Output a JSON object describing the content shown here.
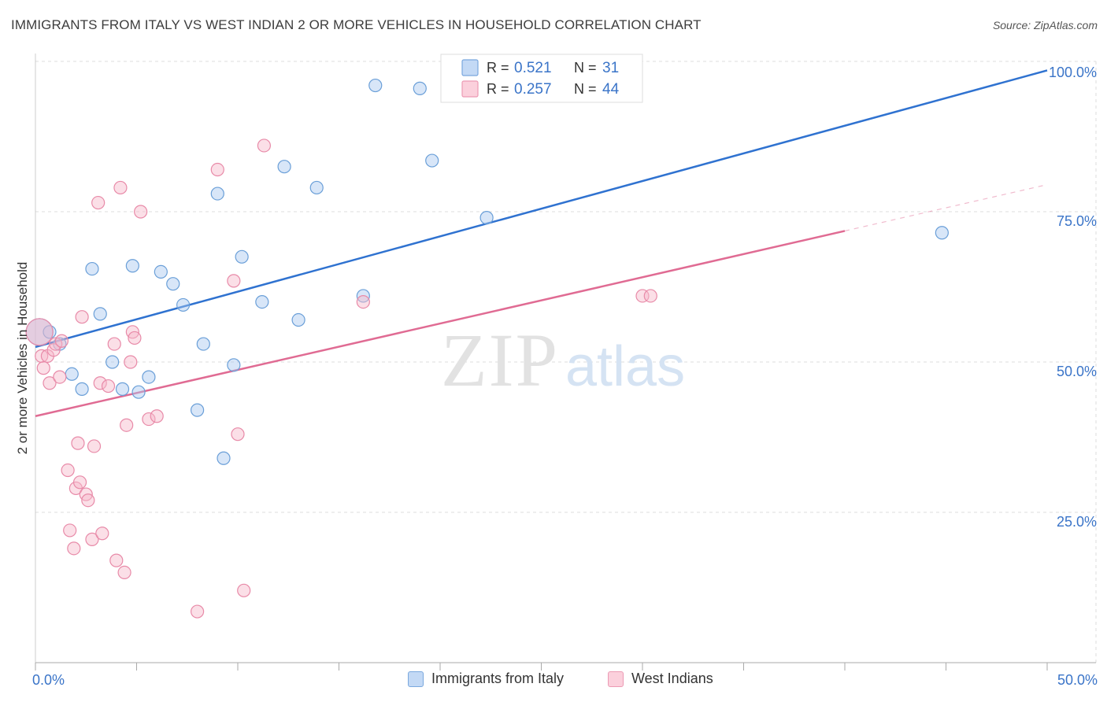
{
  "title": "IMMIGRANTS FROM ITALY VS WEST INDIAN 2 OR MORE VEHICLES IN HOUSEHOLD CORRELATION CHART",
  "source": "Source: ZipAtlas.com",
  "watermark": {
    "zip": "ZIP",
    "atlas": "atlas"
  },
  "colors": {
    "blue_fill": "#a8c8f0",
    "blue_stroke": "#6a9fd8",
    "blue_line": "#2f72d0",
    "pink_fill": "#f6b8ca",
    "pink_stroke": "#e88aa8",
    "pink_line": "#e06b93",
    "value_text": "#3a74c8",
    "grid": "#dddddd"
  },
  "chart_data": {
    "type": "scatter",
    "xlabel": "",
    "ylabel": "2 or more Vehicles in Household",
    "xlim": [
      0,
      50
    ],
    "ylim": [
      0,
      100
    ],
    "x_tick_labels": [
      {
        "value": 0,
        "label": "0.0%"
      },
      {
        "value": 50,
        "label": "50.0%"
      }
    ],
    "y_tick_labels": [
      {
        "value": 25,
        "label": "25.0%"
      },
      {
        "value": 50,
        "label": "50.0%"
      },
      {
        "value": 75,
        "label": "75.0%"
      },
      {
        "value": 100,
        "label": "100.0%"
      }
    ],
    "legend": [
      {
        "r_label": "R = ",
        "r_value": "0.521",
        "n_label": "N = ",
        "n_value": "31"
      },
      {
        "r_label": "R = ",
        "r_value": "0.257",
        "n_label": "N = ",
        "n_value": "44"
      }
    ],
    "series": [
      {
        "name": "Immigrants from Italy",
        "color": "blue",
        "trend": {
          "x0": 0,
          "y0": 52.5,
          "x1": 50,
          "y1": 98.5,
          "dash_from": null
        },
        "points": [
          [
            0.2,
            55.0
          ],
          [
            0.7,
            55.0
          ],
          [
            1.2,
            53.0
          ],
          [
            1.8,
            48.0
          ],
          [
            2.3,
            45.5
          ],
          [
            2.8,
            65.5
          ],
          [
            3.2,
            58.0
          ],
          [
            3.8,
            50.0
          ],
          [
            4.3,
            45.5
          ],
          [
            4.8,
            66.0
          ],
          [
            5.1,
            45.0
          ],
          [
            5.6,
            47.5
          ],
          [
            6.2,
            65.0
          ],
          [
            6.8,
            63.0
          ],
          [
            7.3,
            59.5
          ],
          [
            8.0,
            42.0
          ],
          [
            8.3,
            53.0
          ],
          [
            9.0,
            78.0
          ],
          [
            9.3,
            34.0
          ],
          [
            9.8,
            49.5
          ],
          [
            10.2,
            67.5
          ],
          [
            11.2,
            60.0
          ],
          [
            12.3,
            82.5
          ],
          [
            13.0,
            57.0
          ],
          [
            13.9,
            79.0
          ],
          [
            16.2,
            61.0
          ],
          [
            16.8,
            96.0
          ],
          [
            19.0,
            95.5
          ],
          [
            19.6,
            83.5
          ],
          [
            22.3,
            74.0
          ],
          [
            44.8,
            71.5
          ]
        ]
      },
      {
        "name": "West Indians",
        "color": "pink",
        "trend": {
          "x0": 0,
          "y0": 41.0,
          "x1": 50,
          "y1": 79.5,
          "dash_from": 40.0
        },
        "points": [
          [
            0.2,
            55.0
          ],
          [
            0.3,
            51.0
          ],
          [
            0.4,
            49.0
          ],
          [
            0.6,
            51.0
          ],
          [
            0.7,
            46.5
          ],
          [
            0.9,
            52.0
          ],
          [
            1.0,
            53.0
          ],
          [
            1.2,
            47.5
          ],
          [
            1.3,
            53.5
          ],
          [
            1.6,
            32.0
          ],
          [
            1.7,
            22.0
          ],
          [
            1.9,
            19.0
          ],
          [
            2.0,
            29.0
          ],
          [
            2.1,
            36.5
          ],
          [
            2.2,
            30.0
          ],
          [
            2.3,
            57.5
          ],
          [
            2.5,
            28.0
          ],
          [
            2.6,
            27.0
          ],
          [
            2.8,
            20.5
          ],
          [
            2.9,
            36.0
          ],
          [
            3.1,
            76.5
          ],
          [
            3.2,
            46.5
          ],
          [
            3.3,
            21.5
          ],
          [
            3.6,
            46.0
          ],
          [
            3.9,
            53.0
          ],
          [
            4.0,
            17.0
          ],
          [
            4.2,
            79.0
          ],
          [
            4.4,
            15.0
          ],
          [
            4.5,
            39.5
          ],
          [
            4.7,
            50.0
          ],
          [
            4.8,
            55.0
          ],
          [
            4.9,
            54.0
          ],
          [
            5.2,
            75.0
          ],
          [
            5.6,
            40.5
          ],
          [
            6.0,
            41.0
          ],
          [
            8.0,
            8.5
          ],
          [
            9.0,
            82.0
          ],
          [
            9.8,
            63.5
          ],
          [
            10.0,
            38.0
          ],
          [
            10.3,
            12.0
          ],
          [
            11.3,
            86.0
          ],
          [
            16.2,
            60.0
          ],
          [
            30.0,
            61.0
          ],
          [
            30.4,
            61.0
          ]
        ]
      }
    ]
  }
}
